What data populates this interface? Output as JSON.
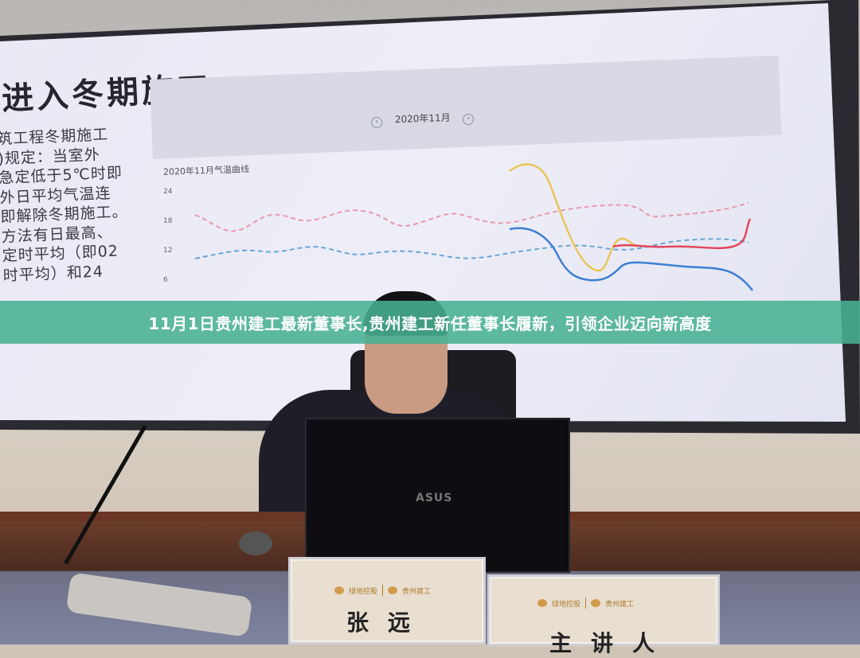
{
  "caption": "11月1日贵州建工最新董事长,贵州建工新任董事长履新，引领企业迈向新高度",
  "slide": {
    "title": "进入冬期施工",
    "body_lines": [
      "筑工程冬期施工",
      ")规定：当室外",
      "急定低于5℃时即",
      "外日平均气温连",
      "即解除冬期施工。",
      "方法有日最高、",
      "定时平均（即02",
      "时平均）和24"
    ],
    "month_nav": {
      "label": "2020年11月",
      "prev": "‹",
      "next": "›"
    },
    "chart_title": "2020年11月气温曲线",
    "y_ticks": [
      "24",
      "18",
      "12",
      "6"
    ]
  },
  "laptop_brand": "ASUS",
  "name_cards": [
    {
      "logo_left": "绿地控股",
      "logo_right": "贵州建工",
      "name": "张远"
    },
    {
      "logo_left": "绿地控股",
      "logo_right": "贵州建工",
      "name": "主讲人"
    }
  ],
  "colors": {
    "banner": "#48b092",
    "slide_bg": "#e9e8f4",
    "series_pink": "#e89aa8",
    "series_blue": "#6aa6d8",
    "series_yellow": "#e8c65a",
    "series_red": "#e0485a",
    "series_darkblue": "#3d7fd0"
  }
}
